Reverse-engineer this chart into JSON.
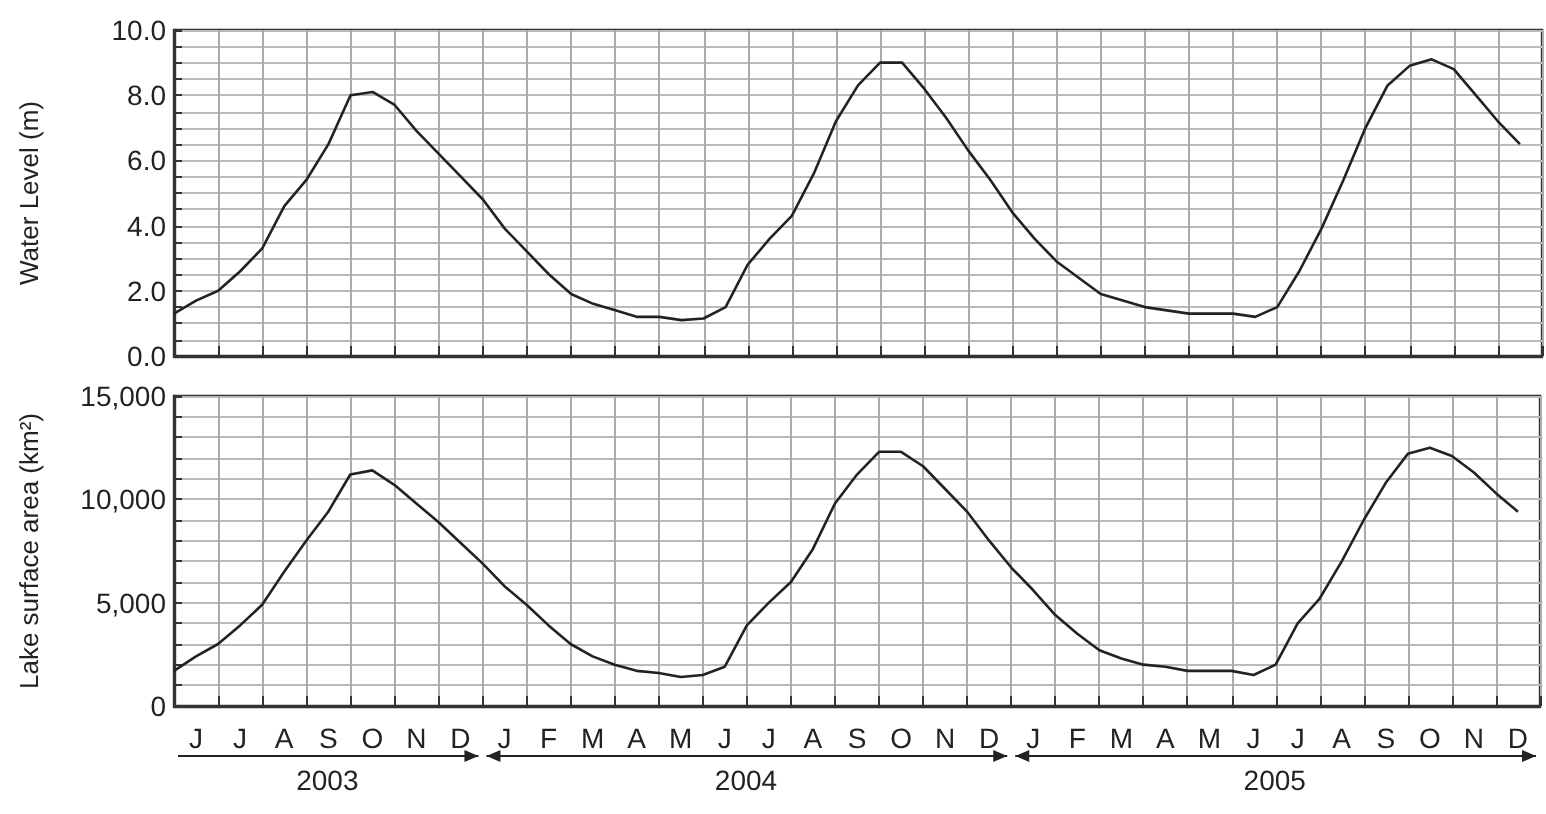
{
  "chart_data": [
    {
      "type": "line",
      "ylabel": "Water Level (m)",
      "grid": true,
      "tick_labels": "y",
      "categories": [
        null,
        null,
        null,
        null,
        null,
        null,
        null,
        null,
        null,
        null,
        null,
        null,
        null,
        null,
        null,
        null,
        null,
        null,
        null,
        null,
        null,
        null,
        null,
        null,
        null,
        null,
        null,
        null,
        null,
        null,
        null,
        null,
        null,
        null,
        null,
        null,
        null,
        null,
        null,
        null,
        null,
        null,
        null,
        null,
        null,
        null,
        null,
        null,
        null,
        null,
        null,
        null,
        null,
        null,
        null,
        null,
        null,
        null,
        null,
        null,
        null,
        null,
        null
      ],
      "ylim": [
        0,
        10
      ],
      "yticks": [
        {
          "value": 0,
          "label": "0.0"
        },
        {
          "value": 0.5,
          "label": null
        },
        {
          "value": 1,
          "label": null
        },
        {
          "value": 1.5,
          "label": null
        },
        {
          "value": 2,
          "label": "2.0"
        },
        {
          "value": 2.5,
          "label": null
        },
        {
          "value": 3,
          "label": null
        },
        {
          "value": 3.5,
          "label": null
        },
        {
          "value": 4,
          "label": "4.0"
        },
        {
          "value": 4.5,
          "label": null
        },
        {
          "value": 5,
          "label": null
        },
        {
          "value": 5.5,
          "label": null
        },
        {
          "value": 6,
          "label": "6.0"
        },
        {
          "value": 6.5,
          "label": null
        },
        {
          "value": 7,
          "label": null
        },
        {
          "value": 7.5,
          "label": null
        },
        {
          "value": 8,
          "label": "8.0"
        },
        {
          "value": 8.5,
          "label": null
        },
        {
          "value": 9,
          "label": null
        },
        {
          "value": 9.5,
          "label": null
        },
        {
          "value": 10,
          "label": "10.0"
        }
      ],
      "series": [
        {
          "color": "#222222",
          "values": [
            1.3,
            1.7,
            2.0,
            2.6,
            3.3,
            4.6,
            5.4,
            6.5,
            8.0,
            8.1,
            7.7,
            6.9,
            6.2,
            5.5,
            4.8,
            3.9,
            3.2,
            2.5,
            1.9,
            1.6,
            1.4,
            1.2,
            1.2,
            1.1,
            1.15,
            1.5,
            2.8,
            3.6,
            4.3,
            5.6,
            7.2,
            8.3,
            9.0,
            9.0,
            8.2,
            7.3,
            6.3,
            5.4,
            4.4,
            3.6,
            2.9,
            2.4,
            1.9,
            1.7,
            1.5,
            1.4,
            1.3,
            1.3,
            1.3,
            1.2,
            1.5,
            2.6,
            3.9,
            5.4,
            7.0,
            8.3,
            8.9,
            9.1,
            8.8,
            8.0,
            7.2,
            6.5,
            null
          ]
        }
      ]
    },
    {
      "type": "line",
      "ylabel": "Lake surface area (km²)",
      "grid": true,
      "annotations": [
        "2003",
        "2004",
        "2005"
      ],
      "categories": [
        null,
        "J",
        null,
        "J",
        null,
        "A",
        null,
        "S",
        null,
        "O",
        null,
        "N",
        null,
        "D",
        null,
        "J",
        null,
        "F",
        null,
        "M",
        null,
        "A",
        null,
        "M",
        null,
        "J",
        null,
        "J",
        null,
        "A",
        null,
        "S",
        null,
        "O",
        null,
        "N",
        null,
        "D",
        null,
        "J",
        null,
        "F",
        null,
        "M",
        null,
        "A",
        null,
        "M",
        null,
        "J",
        null,
        "J",
        null,
        "A",
        null,
        "S",
        null,
        "O",
        null,
        "N",
        null,
        "D",
        null
      ],
      "ylim": [
        0,
        15000
      ],
      "yticks": [
        {
          "value": 0,
          "label": "0"
        },
        {
          "value": 1000,
          "label": null
        },
        {
          "value": 2000,
          "label": null
        },
        {
          "value": 3000,
          "label": null
        },
        {
          "value": 4000,
          "label": null
        },
        {
          "value": 5000,
          "label": "5,000"
        },
        {
          "value": 6000,
          "label": null
        },
        {
          "value": 7000,
          "label": null
        },
        {
          "value": 8000,
          "label": null
        },
        {
          "value": 9000,
          "label": null
        },
        {
          "value": 10000,
          "label": "10,000"
        },
        {
          "value": 11000,
          "label": null
        },
        {
          "value": 12000,
          "label": null
        },
        {
          "value": 13000,
          "label": null
        },
        {
          "value": 14000,
          "label": null
        },
        {
          "value": 15000,
          "label": "15,000"
        }
      ],
      "series": [
        {
          "color": "#222222",
          "values": [
            1700,
            2400,
            3000,
            3900,
            4900,
            6500,
            8000,
            9400,
            11200,
            11400,
            10700,
            9800,
            8900,
            7900,
            6900,
            5800,
            4900,
            3900,
            3000,
            2400,
            2000,
            1700,
            1600,
            1400,
            1500,
            1900,
            3900,
            5000,
            6000,
            7600,
            9800,
            11200,
            12300,
            12300,
            11600,
            10500,
            9400,
            8000,
            6700,
            5600,
            4400,
            3500,
            2700,
            2300,
            2000,
            1900,
            1700,
            1700,
            1700,
            1500,
            2000,
            4000,
            5200,
            7000,
            9000,
            10800,
            12200,
            12500,
            12100,
            11300,
            10300,
            9400,
            null
          ]
        }
      ]
    }
  ]
}
